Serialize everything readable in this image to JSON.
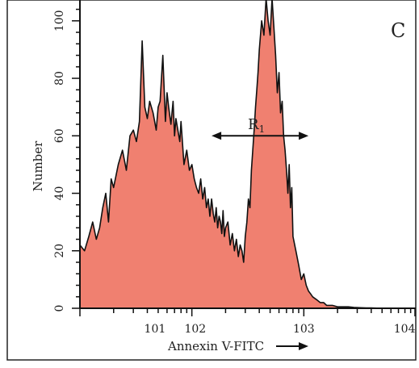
{
  "chart_data": {
    "type": "area",
    "panel_label": "C",
    "title": "",
    "xlabel": "Annexin V-FITC",
    "ylabel": "Number",
    "xscale": "log",
    "xlim": [
      10,
      10000
    ],
    "ylim": [
      0,
      105
    ],
    "x_tick_labels": [
      "101",
      "102",
      "103",
      "104"
    ],
    "y_tick_labels": [
      "0",
      "20",
      "40",
      "60",
      "80",
      "100"
    ],
    "y_ticks": [
      0,
      20,
      40,
      60,
      80,
      100
    ],
    "gate": {
      "label": "R",
      "subscript": "1",
      "x_start": 150,
      "x_end": 1100,
      "y": 60
    },
    "colors": {
      "fill": "#f08070",
      "line": "#111111"
    },
    "series": [
      {
        "x": [
          10,
          11,
          12,
          13,
          14,
          15,
          16,
          17,
          18,
          19,
          20,
          22,
          24,
          26,
          28,
          30,
          32,
          34,
          36,
          38,
          40,
          42,
          45,
          48,
          50,
          52,
          55,
          58,
          60,
          62,
          65,
          68,
          70,
          72,
          75,
          78,
          80,
          85,
          90,
          95,
          100,
          105,
          110,
          115,
          120,
          125,
          130,
          135,
          140,
          145,
          150,
          155,
          160,
          165,
          170,
          175,
          180,
          185,
          190,
          195,
          200,
          210,
          220,
          230,
          240,
          250,
          260,
          270,
          280,
          290,
          300,
          310,
          320,
          330,
          340,
          350,
          360,
          370,
          380,
          390,
          400,
          420,
          440,
          460,
          480,
          500,
          520,
          540,
          560,
          580,
          600,
          620,
          640,
          660,
          680,
          700,
          720,
          740,
          760,
          780,
          800,
          850,
          900,
          950,
          1000,
          1050,
          1100,
          1150,
          1200,
          1300,
          1400,
          1500,
          1600,
          1800,
          2000,
          2200,
          2500,
          2800,
          3200,
          3600,
          4000,
          5000,
          6000,
          8000,
          10000
        ],
        "values": [
          22,
          20,
          25,
          30,
          24,
          28,
          35,
          40,
          30,
          45,
          42,
          50,
          55,
          48,
          60,
          62,
          58,
          65,
          93,
          70,
          66,
          72,
          68,
          62,
          70,
          72,
          88,
          65,
          75,
          70,
          64,
          72,
          60,
          66,
          62,
          58,
          65,
          50,
          55,
          48,
          50,
          45,
          42,
          40,
          45,
          38,
          42,
          35,
          38,
          32,
          38,
          33,
          30,
          35,
          28,
          32,
          30,
          26,
          34,
          25,
          28,
          30,
          22,
          26,
          20,
          24,
          18,
          22,
          20,
          16,
          25,
          30,
          38,
          35,
          48,
          55,
          62,
          70,
          76,
          82,
          90,
          100,
          95,
          108,
          100,
          95,
          110,
          98,
          88,
          75,
          82,
          68,
          72,
          60,
          55,
          48,
          40,
          50,
          35,
          42,
          25,
          20,
          15,
          10,
          12,
          8,
          6,
          5,
          4,
          3,
          2,
          2,
          1,
          1,
          0.5,
          0.5,
          0.5,
          0.3,
          0.2,
          0.1,
          0.1,
          0,
          0,
          0,
          0
        ]
      }
    ]
  }
}
